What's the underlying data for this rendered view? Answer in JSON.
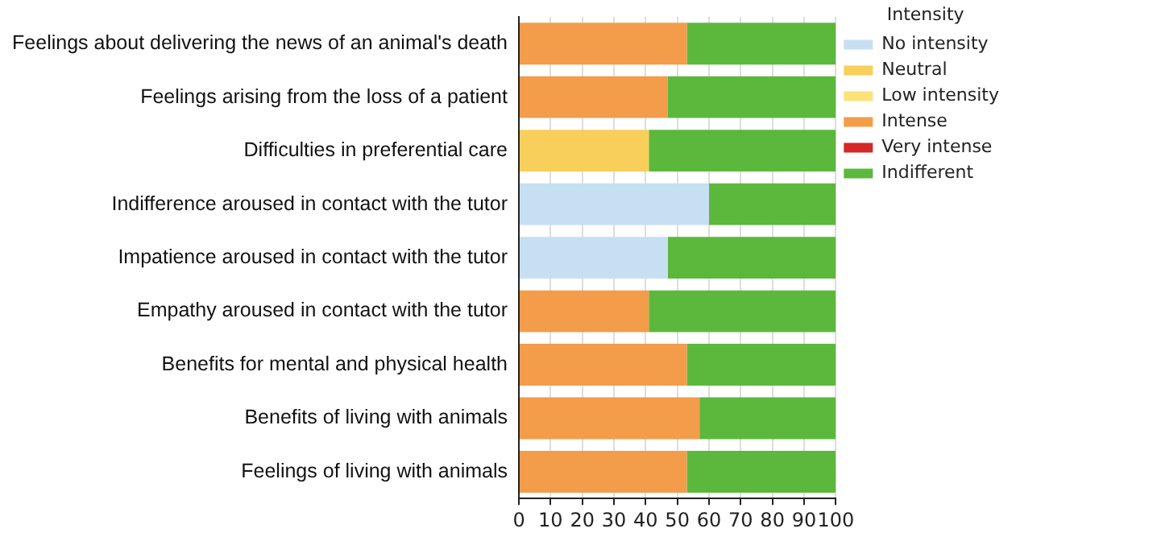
{
  "chart_data": {
    "type": "bar",
    "orientation": "horizontal",
    "stacked": true,
    "legend_title": "Intensity",
    "legend": "top right",
    "grid": "x",
    "categories": [
      "Feelings about delivering the news of an animal's death",
      "Feelings arising from the loss of a patient",
      "Difficulties in preferential care",
      "Indifference aroused in contact with the tutor",
      "Impatience aroused in contact with the tutor",
      "Empathy aroused in contact with the tutor",
      "Benefits for mental and physical health",
      "Benefits of living with animals",
      "Feelings of living with animals"
    ],
    "xlim": [
      0,
      100
    ],
    "xticks": [
      0,
      10,
      20,
      30,
      40,
      50,
      60,
      70,
      80,
      90,
      100
    ],
    "series": [
      {
        "name": "No intensity",
        "color": "#c6dff2",
        "values": [
          null,
          null,
          null,
          60,
          47,
          null,
          null,
          null,
          null
        ]
      },
      {
        "name": "Neutral",
        "color": "#f7cf5a",
        "values": [
          null,
          null,
          41,
          null,
          null,
          null,
          null,
          null,
          null
        ]
      },
      {
        "name": "Low intensity",
        "color": "#fbe27a",
        "values": [
          null,
          null,
          null,
          null,
          null,
          null,
          null,
          null,
          null
        ]
      },
      {
        "name": "Intense",
        "color": "#f39c4a",
        "values": [
          53,
          47,
          null,
          null,
          null,
          41,
          53,
          57,
          53
        ]
      },
      {
        "name": "Very intense",
        "color": "#d62728",
        "values": [
          null,
          null,
          null,
          null,
          null,
          null,
          null,
          null,
          null
        ]
      },
      {
        "name": "Indifferent",
        "color": "#5cb83c",
        "values": [
          47,
          53,
          59,
          40,
          53,
          59,
          47,
          43,
          47
        ]
      }
    ]
  }
}
